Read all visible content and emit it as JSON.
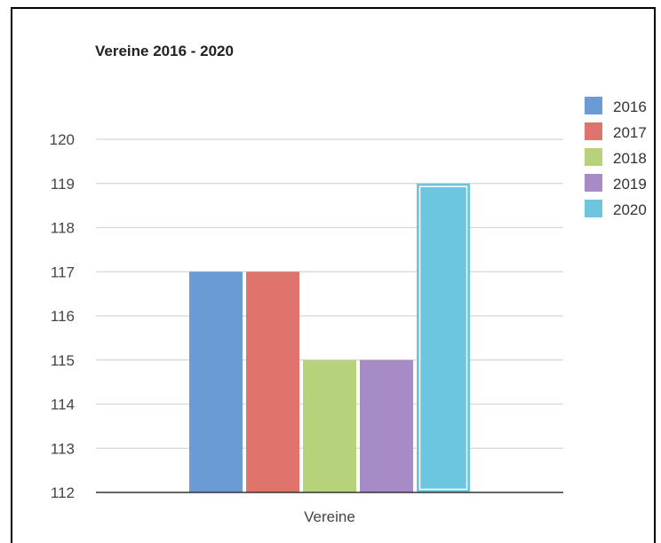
{
  "chart_data": {
    "type": "bar",
    "title": "Vereine 2016 - 2020",
    "categories": [
      "Vereine"
    ],
    "series": [
      {
        "name": "2016",
        "values": [
          117
        ],
        "color": "#6a9bd4"
      },
      {
        "name": "2017",
        "values": [
          117
        ],
        "color": "#e0736b"
      },
      {
        "name": "2018",
        "values": [
          115
        ],
        "color": "#b6d27a"
      },
      {
        "name": "2019",
        "values": [
          115
        ],
        "color": "#a68bc6"
      },
      {
        "name": "2020",
        "values": [
          119
        ],
        "color": "#6cc6e0"
      }
    ],
    "highlighted_series": "2020",
    "ylim": [
      112,
      120
    ],
    "yticks": [
      112,
      113,
      114,
      115,
      116,
      117,
      118,
      119,
      120
    ],
    "grid": true,
    "legend_position": "right"
  }
}
